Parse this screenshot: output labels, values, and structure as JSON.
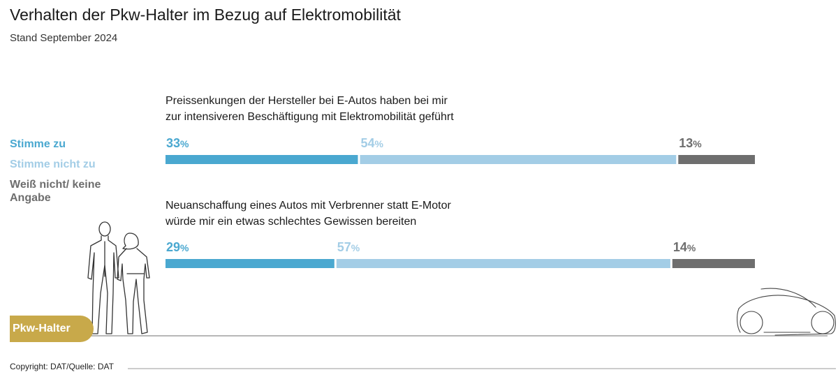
{
  "header": {
    "title": "Verhalten der Pkw-Halter im Bezug auf Elektromobilität",
    "subtitle": "Stand September 2024"
  },
  "badge": {
    "label": "Pkw-Halter"
  },
  "footer": {
    "copyright": "Copyright: DAT/Quelle: DAT"
  },
  "colors": {
    "stimme_zu": "#4aa8d0",
    "stimme_nicht_zu": "#a3cde6",
    "weiss_nicht": "#6e6e6e",
    "badge": "#c8a94a"
  },
  "chart_data": {
    "type": "bar",
    "stacked": true,
    "orientation": "horizontal",
    "legend": [
      {
        "name": "Stimme zu",
        "color": "#4aa8d0"
      },
      {
        "name": "Stimme nicht zu",
        "color": "#a3cde6"
      },
      {
        "name": "Weiß nicht/ keine Angabe",
        "color": "#6e6e6e"
      }
    ],
    "categories": [
      "Preissenkungen der Hersteller bei E-Autos haben bei mir zur intensiveren Beschäftigung mit Elektromobilität geführt",
      "Neuanschaffung eines Autos mit Verbrenner statt E-Motor würde mir ein etwas schlechtes Gewissen bereiten"
    ],
    "category_lines": [
      [
        "Preissenkungen der Hersteller bei E-Autos haben bei mir",
        "zur intensiveren Beschäftigung mit Elektromobilität geführt"
      ],
      [
        "Neuanschaffung eines Autos mit Verbrenner statt E-Motor",
        "würde mir ein etwas schlechtes Gewissen bereiten"
      ]
    ],
    "series": [
      {
        "name": "Stimme zu",
        "values": [
          33,
          29
        ]
      },
      {
        "name": "Stimme nicht zu",
        "values": [
          54,
          57
        ]
      },
      {
        "name": "Weiß nicht/ keine Angabe",
        "values": [
          13,
          14
        ]
      }
    ],
    "unit": "%",
    "xlim": [
      0,
      100
    ]
  }
}
